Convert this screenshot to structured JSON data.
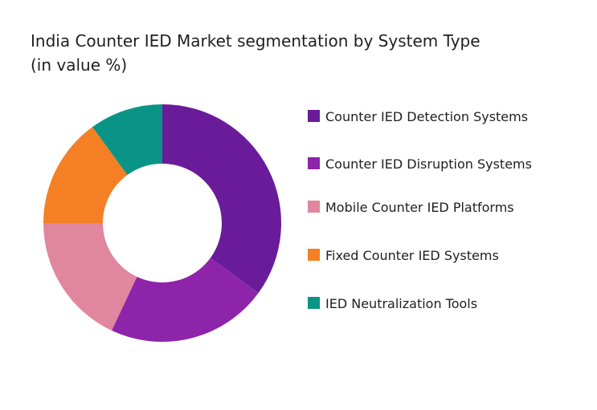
{
  "chart_data": {
    "type": "pie",
    "title": "India Counter IED Market segmentation by System Type",
    "subtitle": "(in value %)",
    "categories": [
      "Counter IED Detection Systems",
      "Counter IED Disruption Systems",
      "Mobile Counter IED Platforms",
      "Fixed Counter IED Systems",
      "IED Neutralization Tools"
    ],
    "values": [
      35,
      22,
      18,
      15,
      10
    ],
    "colors": [
      "#6a1b9a",
      "#8e24aa",
      "#e0869f",
      "#f57f25",
      "#0a9486"
    ],
    "legend_position": "right"
  }
}
